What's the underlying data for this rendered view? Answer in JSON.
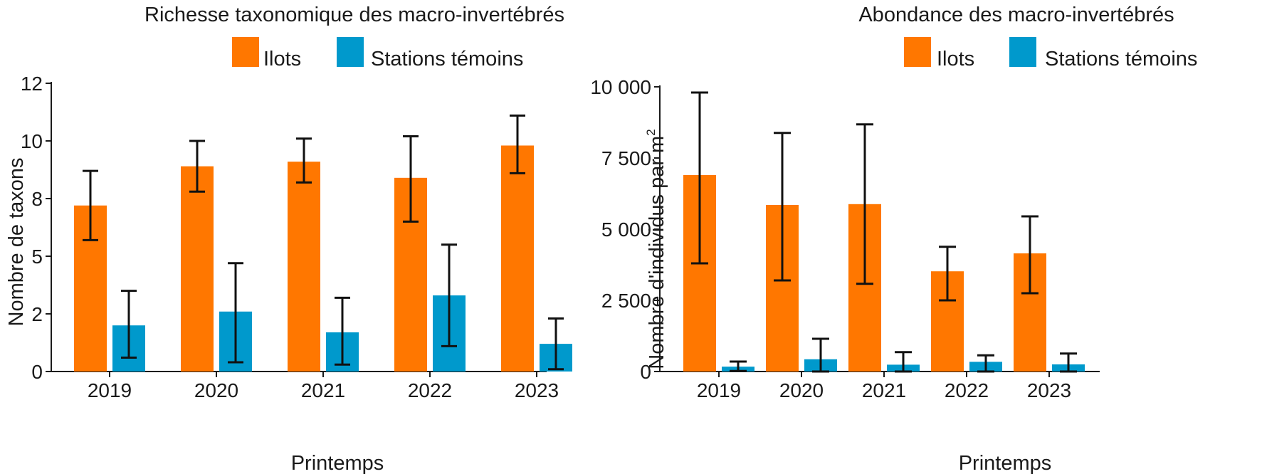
{
  "colors": {
    "ilots": "#ff7700",
    "temoins": "#0099cc"
  },
  "chart_data": [
    {
      "type": "bar",
      "title": "Richesse taxonomique des macro-invertébrés",
      "xlabel": "Printemps",
      "ylabel": "Nombre de taxons",
      "categories": [
        "2019",
        "2020",
        "2021",
        "2022",
        "2023"
      ],
      "ylim": [
        0,
        12.5
      ],
      "yticks": [
        0,
        2.5,
        5,
        7.5,
        10,
        12.5
      ],
      "ytick_labels": [
        "0",
        "2",
        "5",
        "8",
        "10",
        "12"
      ],
      "legend": [
        "Ilots",
        "Stations témoins"
      ],
      "legend_position": "top",
      "series": [
        {
          "name": "Ilots",
          "values": [
            7.2,
            8.9,
            9.1,
            8.4,
            9.8
          ],
          "err_low": [
            5.7,
            7.8,
            8.2,
            6.5,
            8.6
          ],
          "err_high": [
            8.7,
            10.0,
            10.1,
            10.2,
            11.1
          ]
        },
        {
          "name": "Stations témoins",
          "values": [
            2.0,
            2.6,
            1.7,
            3.3,
            1.2
          ],
          "err_low": [
            0.6,
            0.4,
            0.3,
            1.1,
            0.1
          ],
          "err_high": [
            3.5,
            4.7,
            3.2,
            5.5,
            2.3
          ]
        }
      ]
    },
    {
      "type": "bar",
      "title": "Abondance des macro-invertébrés",
      "xlabel": "Printemps",
      "ylabel": "Nombre d'individus par m",
      "ylabel_sup": "2",
      "categories": [
        "2019",
        "2020",
        "2021",
        "2022",
        "2023"
      ],
      "ylim": [
        0,
        10000
      ],
      "yticks": [
        0,
        2500,
        5000,
        7500,
        10000
      ],
      "ytick_labels": [
        "0",
        "2 500",
        "5 000",
        "7 500",
        "10 000"
      ],
      "legend": [
        "Ilots",
        "Stations témoins"
      ],
      "legend_position": "top",
      "series": [
        {
          "name": "Ilots",
          "values": [
            6900,
            5850,
            5880,
            3520,
            4150
          ],
          "err_low": [
            3800,
            3200,
            3080,
            2500,
            2750
          ],
          "err_high": [
            9800,
            8380,
            8680,
            4380,
            5450
          ]
        },
        {
          "name": "Stations témoins",
          "values": [
            170,
            430,
            240,
            340,
            250
          ],
          "err_low": [
            20,
            0,
            0,
            0,
            0
          ],
          "err_high": [
            350,
            1150,
            680,
            570,
            630
          ]
        }
      ]
    }
  ]
}
